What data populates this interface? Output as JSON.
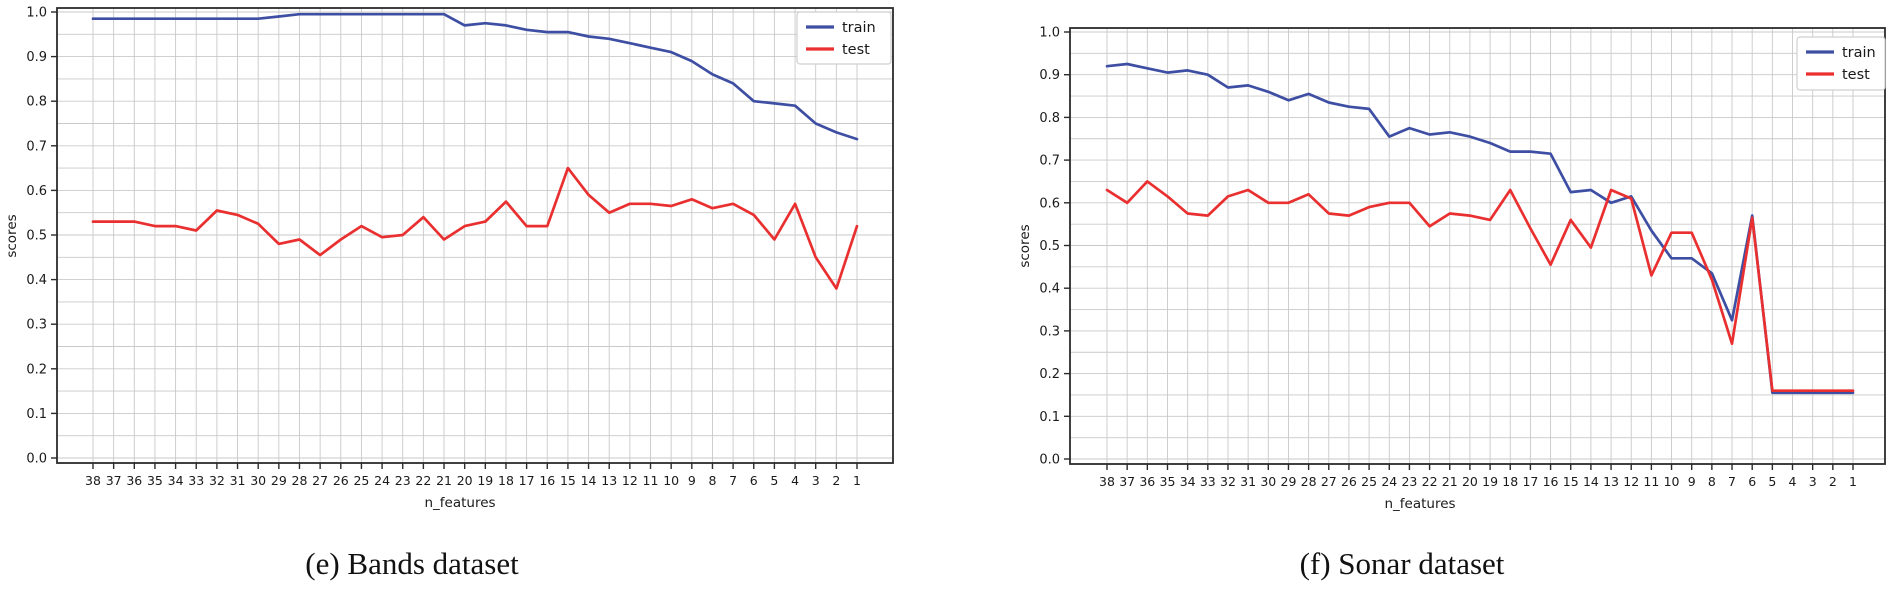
{
  "figure": {
    "background": "#ffffff",
    "text_color": "#1a1a1a",
    "grid_color": "#c9c9c9",
    "spine_color": "#2b2b2b",
    "legend_border_color": "#cfcfcf",
    "legend_background": "#ffffff"
  },
  "chart_data": [
    {
      "type": "line",
      "title": "(e) Bands dataset",
      "xlabel": "n_features",
      "ylabel": "scores",
      "legend_position": "upper right",
      "grid": true,
      "ylim": [
        0.0,
        1.0
      ],
      "ytick_step": 0.1,
      "minor_grid_step": 0.05,
      "x": [
        38,
        37,
        36,
        35,
        34,
        33,
        32,
        31,
        30,
        29,
        28,
        27,
        26,
        25,
        24,
        23,
        22,
        21,
        20,
        19,
        18,
        17,
        16,
        15,
        14,
        13,
        12,
        11,
        10,
        9,
        8,
        7,
        6,
        5,
        4,
        3,
        2,
        1
      ],
      "series": [
        {
          "name": "train",
          "color": "#3e4fa3",
          "values": [
            0.985,
            0.985,
            0.985,
            0.985,
            0.985,
            0.985,
            0.985,
            0.985,
            0.985,
            0.99,
            0.995,
            0.995,
            0.995,
            0.995,
            0.995,
            0.995,
            0.995,
            0.995,
            0.97,
            0.975,
            0.97,
            0.96,
            0.955,
            0.955,
            0.945,
            0.94,
            0.93,
            0.92,
            0.91,
            0.89,
            0.86,
            0.84,
            0.8,
            0.795,
            0.79,
            0.75,
            0.73,
            0.715
          ]
        },
        {
          "name": "test",
          "color": "#e92f2f",
          "values": [
            0.53,
            0.53,
            0.53,
            0.52,
            0.52,
            0.51,
            0.555,
            0.545,
            0.525,
            0.48,
            0.49,
            0.455,
            0.49,
            0.52,
            0.495,
            0.5,
            0.54,
            0.49,
            0.52,
            0.53,
            0.575,
            0.52,
            0.52,
            0.65,
            0.59,
            0.55,
            0.57,
            0.57,
            0.565,
            0.58,
            0.56,
            0.57,
            0.545,
            0.49,
            0.57,
            0.45,
            0.38,
            0.52
          ]
        }
      ],
      "yticks": [
        "0.0",
        "0.1",
        "0.2",
        "0.3",
        "0.4",
        "0.5",
        "0.6",
        "0.7",
        "0.8",
        "0.9",
        "1.0"
      ]
    },
    {
      "type": "line",
      "title": "(f) Sonar dataset",
      "xlabel": "n_features",
      "ylabel": "scores",
      "legend_position": "upper right",
      "grid": true,
      "ylim": [
        0.0,
        1.0
      ],
      "ytick_step": 0.1,
      "minor_grid_step": 0.05,
      "x": [
        38,
        37,
        36,
        35,
        34,
        33,
        32,
        31,
        30,
        29,
        28,
        27,
        26,
        25,
        24,
        23,
        22,
        21,
        20,
        19,
        18,
        17,
        16,
        15,
        14,
        13,
        12,
        11,
        10,
        9,
        8,
        7,
        6,
        5,
        4,
        3,
        2,
        1
      ],
      "series": [
        {
          "name": "train",
          "color": "#3e4fa3",
          "values": [
            0.92,
            0.925,
            0.915,
            0.905,
            0.91,
            0.9,
            0.87,
            0.875,
            0.86,
            0.84,
            0.855,
            0.835,
            0.825,
            0.82,
            0.755,
            0.775,
            0.76,
            0.765,
            0.755,
            0.74,
            0.72,
            0.72,
            0.715,
            0.625,
            0.63,
            0.6,
            0.615,
            0.535,
            0.47,
            0.47,
            0.435,
            0.325,
            0.57,
            0.155,
            0.155,
            0.155,
            0.155,
            0.155
          ]
        },
        {
          "name": "test",
          "color": "#e92f2f",
          "values": [
            0.63,
            0.6,
            0.65,
            0.615,
            0.575,
            0.57,
            0.615,
            0.63,
            0.6,
            0.6,
            0.62,
            0.575,
            0.57,
            0.59,
            0.6,
            0.6,
            0.545,
            0.575,
            0.57,
            0.56,
            0.63,
            0.54,
            0.455,
            0.56,
            0.495,
            0.63,
            0.61,
            0.43,
            0.53,
            0.53,
            0.42,
            0.27,
            0.565,
            0.16,
            0.16,
            0.16,
            0.16,
            0.16
          ]
        }
      ],
      "yticks": [
        "0.0",
        "0.1",
        "0.2",
        "0.3",
        "0.4",
        "0.5",
        "0.6",
        "0.7",
        "0.8",
        "0.9",
        "1.0"
      ]
    }
  ]
}
